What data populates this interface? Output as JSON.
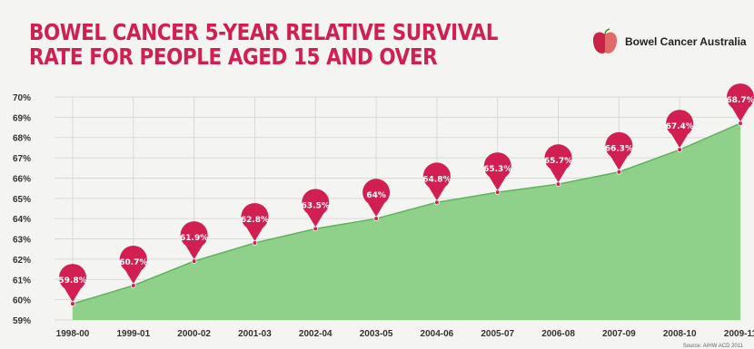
{
  "header": {
    "title_line1": "BOWEL CANCER 5-YEAR RELATIVE SURVIVAL",
    "title_line2": "RATE FOR PEOPLE AGED 15 AND OVER",
    "logo_text": "Bowel Cancer Australia",
    "logo_icon": "apple-logo-icon"
  },
  "footer": {
    "source": "Source: AIHW ACD 2011"
  },
  "colors": {
    "title": "#d21f52",
    "pin": "#d21f52",
    "area": "#8fd08b",
    "area_edge": "#5fb45c",
    "grid": "#d9d9d6"
  },
  "chart_data": {
    "type": "area",
    "title": "BOWEL CANCER 5-YEAR RELATIVE SURVIVAL RATE FOR PEOPLE AGED 15 AND OVER",
    "xlabel": "",
    "ylabel": "",
    "categories": [
      "1998-00",
      "1999-01",
      "2000-02",
      "2001-03",
      "2002-04",
      "2003-05",
      "2004-06",
      "2005-07",
      "2006-08",
      "2007-09",
      "2008-10",
      "2009-11"
    ],
    "values": [
      59.8,
      60.7,
      61.9,
      62.8,
      63.5,
      64.0,
      64.8,
      65.3,
      65.7,
      66.3,
      67.4,
      68.7
    ],
    "data_labels": [
      "59.8%",
      "60.7%",
      "61.9%",
      "62.8%",
      "63.5%",
      "64%",
      "64.8%",
      "65.3%",
      "65.7%",
      "66.3%",
      "67.4%",
      "68.7%"
    ],
    "ylim": [
      59,
      70
    ],
    "yticks": [
      59,
      60,
      61,
      62,
      63,
      64,
      65,
      66,
      67,
      68,
      69,
      70
    ],
    "ytick_labels": [
      "59%",
      "60%",
      "61%",
      "62%",
      "63%",
      "64%",
      "65%",
      "66%",
      "67%",
      "68%",
      "69%",
      "70%"
    ],
    "grid": true,
    "legend": "none"
  }
}
